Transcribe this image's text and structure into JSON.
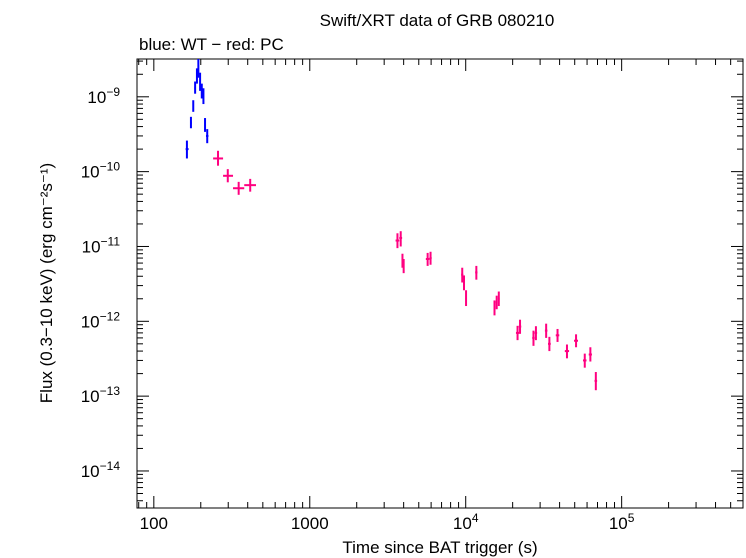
{
  "chart_data": {
    "type": "scatter",
    "title": "Swift/XRT data of GRB 080210",
    "subtitle": "blue: WT − red: PC",
    "xlabel": "Time since BAT trigger (s)",
    "ylabel": "Flux (0.3−10 keV) (erg cm⁻²s⁻¹)",
    "xscale": "log",
    "yscale": "log",
    "xlim": [
      78,
      600000
    ],
    "ylim": [
      3.2e-15,
      3.2e-09
    ],
    "x_ticks": [
      {
        "value": 100,
        "label": "100"
      },
      {
        "value": 1000,
        "label": "1000"
      },
      {
        "value": 10000,
        "label": "10",
        "exp": "4"
      },
      {
        "value": 100000,
        "label": "10",
        "exp": "5"
      }
    ],
    "y_ticks": [
      {
        "value": 1e-09,
        "label": "10",
        "exp": "−9"
      },
      {
        "value": 1e-10,
        "label": "10",
        "exp": "−10"
      },
      {
        "value": 1e-11,
        "label": "10",
        "exp": "−11"
      },
      {
        "value": 1e-12,
        "label": "10",
        "exp": "−12"
      },
      {
        "value": 1e-13,
        "label": "10",
        "exp": "−13"
      },
      {
        "value": 1e-14,
        "label": "10",
        "exp": "−14"
      }
    ],
    "grid": false,
    "series": [
      {
        "color": "#0000ff",
        "points": [
          {
            "x": 163,
            "xlo": 160,
            "xhi": 167,
            "y": 2e-10,
            "ylo": 1.5e-10,
            "yhi": 2.6e-10
          },
          {
            "x": 173,
            "xlo": 171,
            "xhi": 175,
            "y": 4.5e-10,
            "ylo": 3.8e-10,
            "yhi": 5.4e-10
          },
          {
            "x": 179,
            "xlo": 177,
            "xhi": 181,
            "y": 7.5e-10,
            "ylo": 6.3e-10,
            "yhi": 9e-10
          },
          {
            "x": 184,
            "xlo": 182,
            "xhi": 186,
            "y": 1.3e-09,
            "ylo": 1.1e-09,
            "yhi": 1.6e-09
          },
          {
            "x": 189,
            "xlo": 187,
            "xhi": 191,
            "y": 1.9e-09,
            "ylo": 1.5e-09,
            "yhi": 2.4e-09
          },
          {
            "x": 193,
            "xlo": 191,
            "xhi": 195,
            "y": 2.4e-09,
            "ylo": 1.8e-09,
            "yhi": 3.2e-09
          },
          {
            "x": 198,
            "xlo": 196,
            "xhi": 200,
            "y": 1.6e-09,
            "ylo": 1.2e-09,
            "yhi": 2.1e-09
          },
          {
            "x": 203,
            "xlo": 201,
            "xhi": 205,
            "y": 1.2e-09,
            "ylo": 9.5e-10,
            "yhi": 1.5e-09
          },
          {
            "x": 208,
            "xlo": 206,
            "xhi": 210,
            "y": 1e-09,
            "ylo": 8e-10,
            "yhi": 1.3e-09
          },
          {
            "x": 213,
            "xlo": 211,
            "xhi": 215,
            "y": 4.2e-10,
            "ylo": 3.4e-10,
            "yhi": 5.2e-10
          },
          {
            "x": 220,
            "xlo": 216,
            "xhi": 224,
            "y": 3e-10,
            "ylo": 2.4e-10,
            "yhi": 3.7e-10
          }
        ]
      },
      {
        "color": "#ff0080",
        "points": [
          {
            "x": 258,
            "xlo": 240,
            "xhi": 278,
            "y": 1.5e-10,
            "ylo": 1.2e-10,
            "yhi": 1.9e-10
          },
          {
            "x": 298,
            "xlo": 278,
            "xhi": 322,
            "y": 8.8e-11,
            "ylo": 7.2e-11,
            "yhi": 1.08e-10
          },
          {
            "x": 350,
            "xlo": 322,
            "xhi": 380,
            "y": 6e-11,
            "ylo": 4.9e-11,
            "yhi": 7.3e-11
          },
          {
            "x": 415,
            "xlo": 380,
            "xhi": 452,
            "y": 6.6e-11,
            "ylo": 5.4e-11,
            "yhi": 8e-11
          },
          {
            "x": 3650,
            "xlo": 3550,
            "xhi": 3750,
            "y": 1.2e-11,
            "ylo": 9.5e-12,
            "yhi": 1.5e-11
          },
          {
            "x": 3830,
            "xlo": 3750,
            "xhi": 3910,
            "y": 1.3e-11,
            "ylo": 1e-11,
            "yhi": 1.6e-11
          },
          {
            "x": 3930,
            "xlo": 3880,
            "xhi": 3980,
            "y": 6.5e-12,
            "ylo": 5.2e-12,
            "yhi": 8e-12
          },
          {
            "x": 4000,
            "xlo": 3950,
            "xhi": 4050,
            "y": 5.5e-12,
            "ylo": 4.4e-12,
            "yhi": 6.8e-12
          },
          {
            "x": 5700,
            "xlo": 5550,
            "xhi": 5850,
            "y": 6.8e-12,
            "ylo": 5.5e-12,
            "yhi": 8.2e-12
          },
          {
            "x": 5950,
            "xlo": 5850,
            "xhi": 6050,
            "y": 7e-12,
            "ylo": 5.7e-12,
            "yhi": 8.5e-12
          },
          {
            "x": 9500,
            "xlo": 9350,
            "xhi": 9650,
            "y": 4.2e-12,
            "ylo": 3.3e-12,
            "yhi": 5.2e-12
          },
          {
            "x": 9750,
            "xlo": 9650,
            "xhi": 9850,
            "y": 3.3e-12,
            "ylo": 2.6e-12,
            "yhi": 4.1e-12
          },
          {
            "x": 10050,
            "xlo": 9950,
            "xhi": 10150,
            "y": 2e-12,
            "ylo": 1.6e-12,
            "yhi": 2.6e-12
          },
          {
            "x": 11700,
            "xlo": 11500,
            "xhi": 11900,
            "y": 4.5e-12,
            "ylo": 3.6e-12,
            "yhi": 5.5e-12
          },
          {
            "x": 15300,
            "xlo": 15150,
            "xhi": 15450,
            "y": 1.5e-12,
            "ylo": 1.2e-12,
            "yhi": 1.9e-12
          },
          {
            "x": 15800,
            "xlo": 15600,
            "xhi": 16000,
            "y": 1.8e-12,
            "ylo": 1.45e-12,
            "yhi": 2.2e-12
          },
          {
            "x": 16300,
            "xlo": 16100,
            "xhi": 16500,
            "y": 2e-12,
            "ylo": 1.6e-12,
            "yhi": 2.5e-12
          },
          {
            "x": 21500,
            "xlo": 21000,
            "xhi": 22000,
            "y": 7e-13,
            "ylo": 5.6e-13,
            "yhi": 8.7e-13
          },
          {
            "x": 22300,
            "xlo": 21900,
            "xhi": 22700,
            "y": 8.5e-13,
            "ylo": 6.8e-13,
            "yhi": 1.05e-12
          },
          {
            "x": 27200,
            "xlo": 26700,
            "xhi": 27700,
            "y": 6e-13,
            "ylo": 4.7e-13,
            "yhi": 7.5e-13
          },
          {
            "x": 28200,
            "xlo": 27700,
            "xhi": 28700,
            "y": 7e-13,
            "ylo": 5.6e-13,
            "yhi": 8.6e-13
          },
          {
            "x": 32800,
            "xlo": 32200,
            "xhi": 33400,
            "y": 7.5e-13,
            "ylo": 6e-13,
            "yhi": 9.3e-13
          },
          {
            "x": 34400,
            "xlo": 33700,
            "xhi": 35100,
            "y": 5e-13,
            "ylo": 4e-13,
            "yhi": 6.2e-13
          },
          {
            "x": 38800,
            "xlo": 37800,
            "xhi": 39800,
            "y": 6.5e-13,
            "ylo": 5.3e-13,
            "yhi": 7.9e-13
          },
          {
            "x": 44600,
            "xlo": 43200,
            "xhi": 46000,
            "y": 4e-13,
            "ylo": 3.2e-13,
            "yhi": 4.9e-13
          },
          {
            "x": 51000,
            "xlo": 49500,
            "xhi": 52500,
            "y": 5.5e-13,
            "ylo": 4.5e-13,
            "yhi": 6.7e-13
          },
          {
            "x": 58000,
            "xlo": 56500,
            "xhi": 59500,
            "y": 3e-13,
            "ylo": 2.4e-13,
            "yhi": 3.7e-13
          },
          {
            "x": 63000,
            "xlo": 61500,
            "xhi": 64500,
            "y": 3.6e-13,
            "ylo": 2.9e-13,
            "yhi": 4.5e-13
          },
          {
            "x": 68300,
            "xlo": 67000,
            "xhi": 69600,
            "y": 1.6e-13,
            "ylo": 1.2e-13,
            "yhi": 2.1e-13
          }
        ]
      }
    ]
  }
}
